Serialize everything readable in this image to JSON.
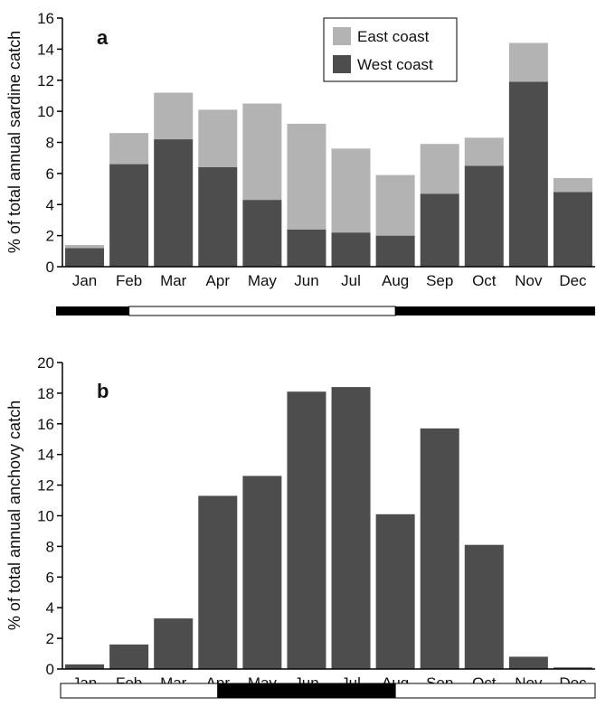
{
  "colors": {
    "west": "#4d4d4d",
    "east": "#b3b3b3",
    "anchovy": "#4d4d4d",
    "axis": "#000000",
    "band_dark": "#000000",
    "band_light": "#ffffff"
  },
  "chart_data": [
    {
      "type": "bar",
      "stacked": true,
      "panel_label": "a",
      "ylabel": "% of total annual sardine catch",
      "xlabel": "",
      "categories": [
        "Jan",
        "Feb",
        "Mar",
        "Apr",
        "May",
        "Jun",
        "Jul",
        "Aug",
        "Sep",
        "Oct",
        "Nov",
        "Dec"
      ],
      "series": [
        {
          "name": "West coast",
          "values": [
            1.2,
            6.6,
            8.2,
            6.4,
            4.3,
            2.4,
            2.2,
            2.0,
            4.7,
            6.5,
            11.9,
            4.8
          ]
        },
        {
          "name": "East coast",
          "values": [
            0.2,
            2.0,
            3.0,
            3.7,
            6.2,
            6.8,
            5.4,
            3.9,
            3.2,
            1.8,
            2.5,
            0.9
          ]
        }
      ],
      "legend_order": [
        "East coast",
        "West coast"
      ],
      "yticks": [
        "0",
        "2",
        "4",
        "6",
        "8",
        "10",
        "12",
        "14",
        "16"
      ],
      "ylim": [
        0,
        16
      ],
      "legend_position": "top-center",
      "grid": false,
      "band": [
        {
          "from": "Jan",
          "to": "Feb",
          "shade": "dark"
        },
        {
          "from": "Mar",
          "to": "Jul",
          "shade": "light"
        },
        {
          "from": "Sep",
          "to": "Dec",
          "shade": "dark"
        }
      ]
    },
    {
      "type": "bar",
      "panel_label": "b",
      "ylabel": "% of total annual anchovy catch",
      "xlabel": "",
      "categories": [
        "Jan",
        "Feb",
        "Mar",
        "Apr",
        "May",
        "Jun",
        "Jul",
        "Aug",
        "Sep",
        "Oct",
        "Nov",
        "Dec"
      ],
      "values": [
        0.3,
        1.6,
        3.3,
        11.3,
        12.6,
        18.1,
        18.4,
        10.1,
        15.7,
        8.1,
        0.8,
        0.1
      ],
      "yticks": [
        "0",
        "2",
        "4",
        "6",
        "8",
        "10",
        "12",
        "14",
        "16",
        "18",
        "20"
      ],
      "ylim": [
        0,
        20
      ],
      "grid": false,
      "band": [
        {
          "from": "Jan",
          "to": "Mar",
          "shade": "light"
        },
        {
          "from": "May",
          "to": "Jul",
          "shade": "dark"
        },
        {
          "from": "Sep",
          "to": "Dec",
          "shade": "light"
        }
      ]
    }
  ]
}
